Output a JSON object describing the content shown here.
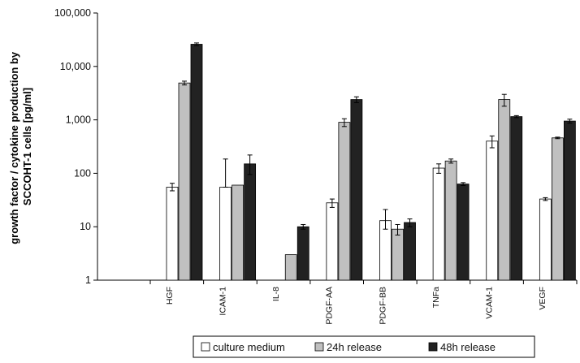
{
  "chart_data": {
    "type": "bar",
    "yscale": "log",
    "ylim": [
      1,
      100000
    ],
    "ylabel_lines": [
      "growth factor / cytokine production by",
      "SCCOHT-1 cells [pg/ml]"
    ],
    "ytick_values": [
      1,
      10,
      100,
      1000,
      10000,
      100000
    ],
    "ytick_labels": [
      "1",
      "10",
      "100",
      "1,000",
      "10,000",
      "100,000"
    ],
    "categories": [
      "HGF",
      "ICAM-1",
      "IL-8",
      "PDGF-AA",
      "PDGF-BB",
      "TNFa",
      "VCAM-1",
      "VEGF"
    ],
    "series": [
      {
        "name": "culture medium",
        "color": "#ffffff",
        "values": [
          55,
          55,
          null,
          28,
          13,
          125,
          400,
          33
        ],
        "err_low": [
          8,
          0,
          null,
          5,
          4,
          25,
          100,
          2
        ],
        "err_high": [
          10,
          130,
          null,
          5,
          8,
          25,
          100,
          2
        ]
      },
      {
        "name": "24h release",
        "color": "#c0c0c0",
        "values": [
          4900,
          60,
          3,
          900,
          9,
          170,
          2400,
          460
        ],
        "err_low": [
          400,
          0,
          0,
          150,
          2,
          15,
          600,
          15
        ],
        "err_high": [
          400,
          0,
          0,
          150,
          2,
          15,
          600,
          15
        ]
      },
      {
        "name": "48h release",
        "color": "#222222",
        "values": [
          26000,
          150,
          10,
          2400,
          12,
          63,
          1150,
          950
        ],
        "err_low": [
          1500,
          55,
          1,
          300,
          2,
          4,
          50,
          80
        ],
        "err_high": [
          1500,
          70,
          1,
          300,
          2,
          4,
          50,
          80
        ]
      }
    ],
    "grid": false,
    "legend_position": "bottom"
  }
}
